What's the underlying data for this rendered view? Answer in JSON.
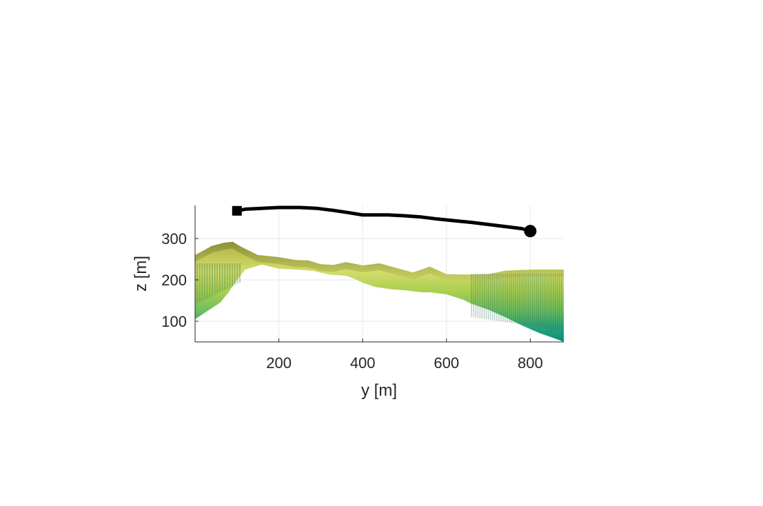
{
  "chart_data": {
    "type": "line",
    "title": "",
    "xlabel": "y [m]",
    "ylabel": "z [m]",
    "xlim": [
      0,
      880
    ],
    "ylim": [
      50,
      380
    ],
    "xticks": [
      200,
      400,
      600,
      800
    ],
    "yticks": [
      100,
      200,
      300
    ],
    "grid": true,
    "series": [
      {
        "marker_start": "square",
        "marker_end": "circle",
        "color": "#000000",
        "x": [
          100,
          120,
          160,
          200,
          250,
          290,
          330,
          370,
          400,
          430,
          460,
          500,
          540,
          580,
          620,
          660,
          700,
          740,
          780,
          800
        ],
        "y": [
          367,
          371,
          373,
          375,
          375,
          373,
          368,
          362,
          357,
          357,
          357,
          355,
          352,
          347,
          343,
          339,
          334,
          329,
          324,
          318
        ]
      }
    ],
    "terrain": {
      "colormap": [
        "#0a8d7a",
        "#2aa37a",
        "#6bbd5f",
        "#a9cf4f",
        "#d2dc6b",
        "#b3b143"
      ],
      "surface": [
        [
          0,
          260
        ],
        [
          40,
          282
        ],
        [
          70,
          290
        ],
        [
          90,
          292
        ],
        [
          110,
          280
        ],
        [
          150,
          260
        ],
        [
          200,
          255
        ],
        [
          240,
          248
        ],
        [
          270,
          247
        ],
        [
          300,
          238
        ],
        [
          330,
          236
        ],
        [
          360,
          243
        ],
        [
          400,
          235
        ],
        [
          440,
          240
        ],
        [
          480,
          229
        ],
        [
          520,
          218
        ],
        [
          560,
          232
        ],
        [
          600,
          214
        ],
        [
          650,
          213
        ],
        [
          700,
          214
        ],
        [
          740,
          222
        ],
        [
          780,
          224
        ],
        [
          820,
          225
        ],
        [
          880,
          225
        ]
      ],
      "underside": [
        [
          0,
          105
        ],
        [
          30,
          125
        ],
        [
          60,
          145
        ],
        [
          80,
          170
        ],
        [
          100,
          200
        ],
        [
          120,
          225
        ],
        [
          160,
          237
        ],
        [
          200,
          227
        ],
        [
          240,
          225
        ],
        [
          280,
          222
        ],
        [
          320,
          213
        ],
        [
          360,
          210
        ],
        [
          380,
          203
        ],
        [
          400,
          193
        ],
        [
          430,
          183
        ],
        [
          470,
          177
        ],
        [
          500,
          175
        ],
        [
          540,
          170
        ],
        [
          560,
          170
        ],
        [
          600,
          165
        ],
        [
          640,
          152
        ],
        [
          660,
          142
        ],
        [
          700,
          128
        ],
        [
          740,
          110
        ],
        [
          780,
          90
        ],
        [
          820,
          72
        ],
        [
          860,
          58
        ],
        [
          880,
          50
        ]
      ]
    }
  }
}
